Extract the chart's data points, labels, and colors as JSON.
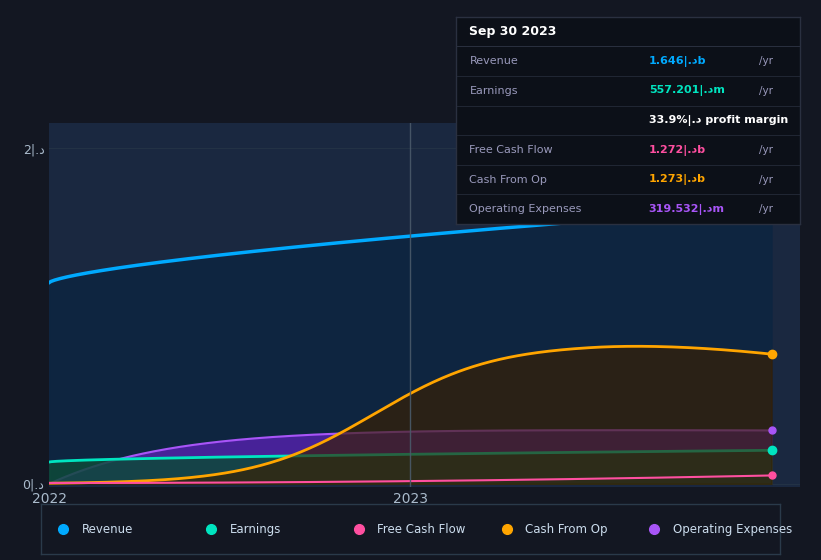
{
  "bg_color": "#131722",
  "plot_bg": "#1a2840",
  "colors": {
    "revenue": "#00aaff",
    "earnings": "#00e5c0",
    "free_cash_flow": "#ff4fa0",
    "cash_from_op": "#ffa500",
    "op_expenses": "#a855f7"
  },
  "legend": [
    {
      "label": "Revenue",
      "color": "#00aaff"
    },
    {
      "label": "Earnings",
      "color": "#00e5c0"
    },
    {
      "label": "Free Cash Flow",
      "color": "#ff4fa0"
    },
    {
      "label": "Cash From Op",
      "color": "#ffa500"
    },
    {
      "label": "Operating Expenses",
      "color": "#a855f7"
    }
  ],
  "tooltip_title": "Sep 30 2023",
  "tooltip_rows": [
    {
      "label": "Revenue",
      "value": "1.646",
      "unit": "b",
      "suffix": "/yr",
      "color": "#00aaff"
    },
    {
      "label": "Earnings",
      "value": "557.201",
      "unit": "m",
      "suffix": "/yr",
      "color": "#00e5c0"
    },
    {
      "label": "",
      "value": "33.9%",
      "unit": " profit margin",
      "suffix": "",
      "color": "#ffffff"
    },
    {
      "label": "Free Cash Flow",
      "value": "1.272",
      "unit": "b",
      "suffix": "/yr",
      "color": "#ff4fa0"
    },
    {
      "label": "Cash From Op",
      "value": "1.273",
      "unit": "b",
      "suffix": "/yr",
      "color": "#ffa500"
    },
    {
      "label": "Operating Expenses",
      "value": "319.532",
      "unit": "m",
      "suffix": "/yr",
      "color": "#a855f7"
    }
  ]
}
